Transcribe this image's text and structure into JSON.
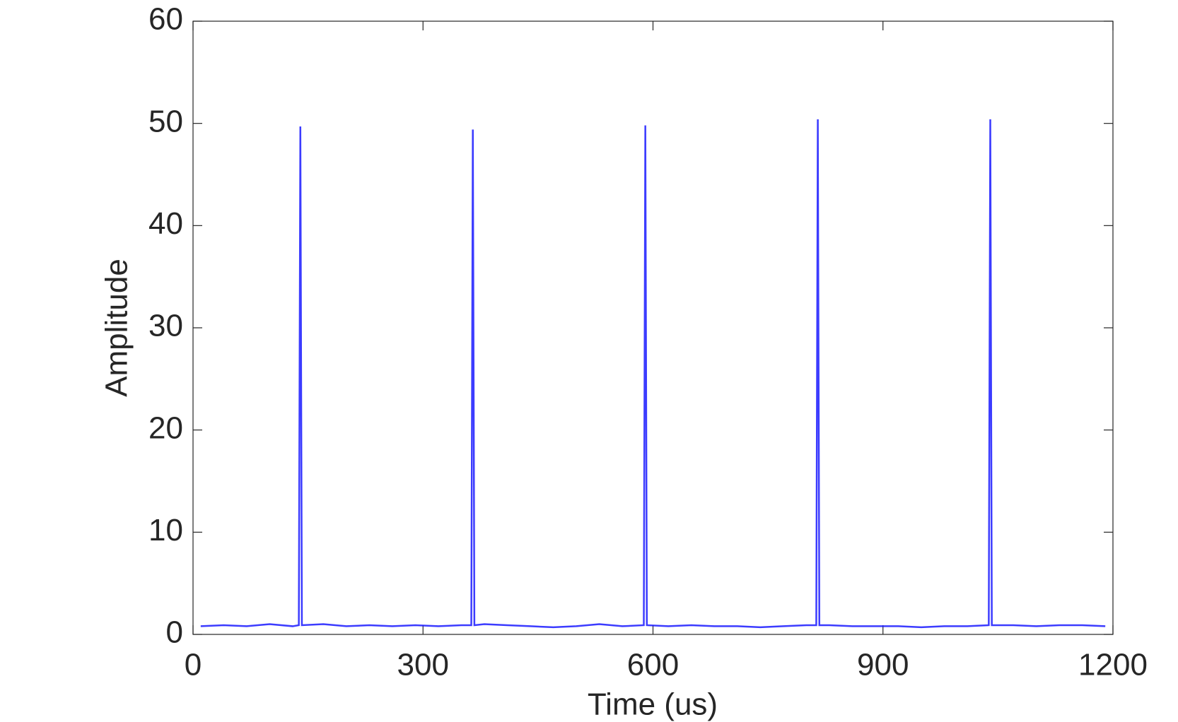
{
  "chart_data": {
    "type": "line",
    "x_label": "Time (us)",
    "y_label": "Amplitude",
    "x": [
      10,
      40,
      70,
      100,
      130,
      138,
      140,
      142,
      170,
      200,
      230,
      260,
      290,
      320,
      350,
      363,
      365,
      367,
      380,
      410,
      440,
      470,
      500,
      530,
      560,
      588,
      590,
      592,
      620,
      650,
      680,
      710,
      740,
      770,
      800,
      813,
      815,
      817,
      830,
      860,
      890,
      920,
      950,
      980,
      1010,
      1038,
      1040,
      1042,
      1070,
      1100,
      1130,
      1160,
      1190
    ],
    "series": [
      {
        "color": "#1a1aff",
        "values": [
          0.8,
          0.9,
          0.8,
          1.0,
          0.8,
          0.9,
          49.7,
          0.9,
          1.0,
          0.8,
          0.9,
          0.8,
          0.9,
          0.8,
          0.9,
          0.9,
          49.4,
          0.9,
          1.0,
          0.9,
          0.8,
          0.7,
          0.8,
          1.0,
          0.8,
          0.9,
          49.8,
          0.9,
          0.8,
          0.9,
          0.8,
          0.8,
          0.7,
          0.8,
          0.9,
          0.9,
          50.4,
          0.9,
          0.9,
          0.8,
          0.8,
          0.8,
          0.7,
          0.8,
          0.8,
          0.9,
          50.4,
          0.9,
          0.9,
          0.8,
          0.9,
          0.9,
          0.8
        ]
      }
    ],
    "xlim": [
      0,
      1200
    ],
    "xticks": [
      0,
      300,
      600,
      900,
      1200
    ],
    "ylim": [
      0,
      60
    ],
    "yticks": [
      0,
      10,
      20,
      30,
      40,
      50,
      60
    ],
    "grid": false
  }
}
